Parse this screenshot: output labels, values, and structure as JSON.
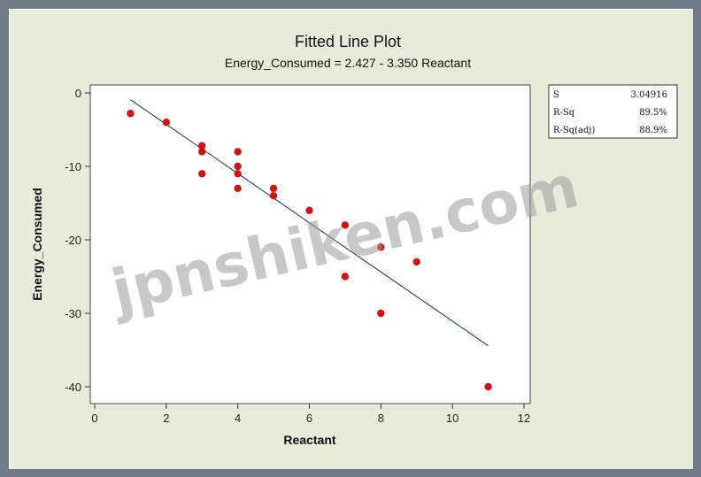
{
  "chart_data": {
    "type": "scatter",
    "title": "Fitted Line Plot",
    "subtitle": "Energy_Consumed =  2.427 - 3.350 Reactant",
    "xlabel": "Reactant",
    "ylabel": "Energy_Consumed",
    "xlim": [
      0,
      12
    ],
    "ylim": [
      -42,
      1
    ],
    "x_ticks": [
      "0",
      "2",
      "4",
      "6",
      "8",
      "10",
      "12"
    ],
    "y_ticks": [
      "0",
      "-10",
      "-20",
      "-30",
      "-40"
    ],
    "x_tick_values": [
      0,
      2,
      4,
      6,
      8,
      10,
      12
    ],
    "y_tick_values": [
      0,
      -10,
      -20,
      -30,
      -40
    ],
    "grid": false,
    "series": [
      {
        "points": [
          [
            1,
            -2.8
          ],
          [
            2,
            -4
          ],
          [
            3,
            -7.2
          ],
          [
            3,
            -8
          ],
          [
            3,
            -11
          ],
          [
            4,
            -8
          ],
          [
            4,
            -10
          ],
          [
            4,
            -11
          ],
          [
            4,
            -13
          ],
          [
            5,
            -13
          ],
          [
            5,
            -14
          ],
          [
            6,
            -16
          ],
          [
            7,
            -18
          ],
          [
            7,
            -25
          ],
          [
            8,
            -21
          ],
          [
            8,
            -30
          ],
          [
            9,
            -23
          ],
          [
            11,
            -40
          ]
        ],
        "color": "#cc1414"
      }
    ],
    "fit_line": {
      "intercept": 2.427,
      "slope": -3.35,
      "x_range": [
        1,
        11
      ],
      "color": "#1c2a5a"
    },
    "stats_box": [
      {
        "label": "S",
        "value": "3.04916"
      },
      {
        "label": "R-Sq",
        "value": "89.5%"
      },
      {
        "label": "R-Sq(adj)",
        "value": "88.9%"
      }
    ]
  },
  "watermark": "jpnshiken.com"
}
